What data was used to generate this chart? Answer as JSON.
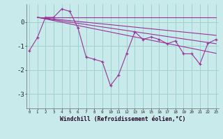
{
  "x": [
    0,
    1,
    2,
    3,
    4,
    5,
    6,
    7,
    8,
    9,
    10,
    11,
    12,
    13,
    14,
    15,
    16,
    17,
    18,
    19,
    20,
    21,
    22,
    23
  ],
  "windchill": [
    -1.2,
    -0.65,
    0.2,
    0.2,
    0.55,
    0.45,
    -0.25,
    -1.45,
    -1.55,
    -1.65,
    -2.65,
    -2.2,
    -1.3,
    -0.4,
    -0.72,
    -0.62,
    -0.72,
    -0.9,
    -0.78,
    -1.32,
    -1.32,
    -1.75,
    -0.88,
    -0.72
  ],
  "trend_lines": [
    [
      [
        1,
        23
      ],
      [
        0.2,
        0.2
      ]
    ],
    [
      [
        1,
        23
      ],
      [
        0.2,
        -0.55
      ]
    ],
    [
      [
        1,
        23
      ],
      [
        0.2,
        -0.9
      ]
    ],
    [
      [
        1,
        23
      ],
      [
        0.2,
        -1.3
      ]
    ]
  ],
  "color": "#993399",
  "bg_color": "#c8eaea",
  "grid_color": "#a0d0d0",
  "xlabel": "Windchill (Refroidissement éolien,°C)",
  "xlim": [
    -0.3,
    23.3
  ],
  "ylim": [
    -3.6,
    0.75
  ],
  "xtick_labels": [
    "0",
    "1",
    "2",
    "3",
    "4",
    "5",
    "6",
    "7",
    "8",
    "9",
    "10",
    "11",
    "12",
    "13",
    "14",
    "15",
    "16",
    "17",
    "18",
    "19",
    "20",
    "21",
    "22",
    "23"
  ],
  "ytick_values": [
    0,
    -1,
    -2,
    -3
  ],
  "figsize": [
    3.2,
    2.0
  ],
  "dpi": 100
}
